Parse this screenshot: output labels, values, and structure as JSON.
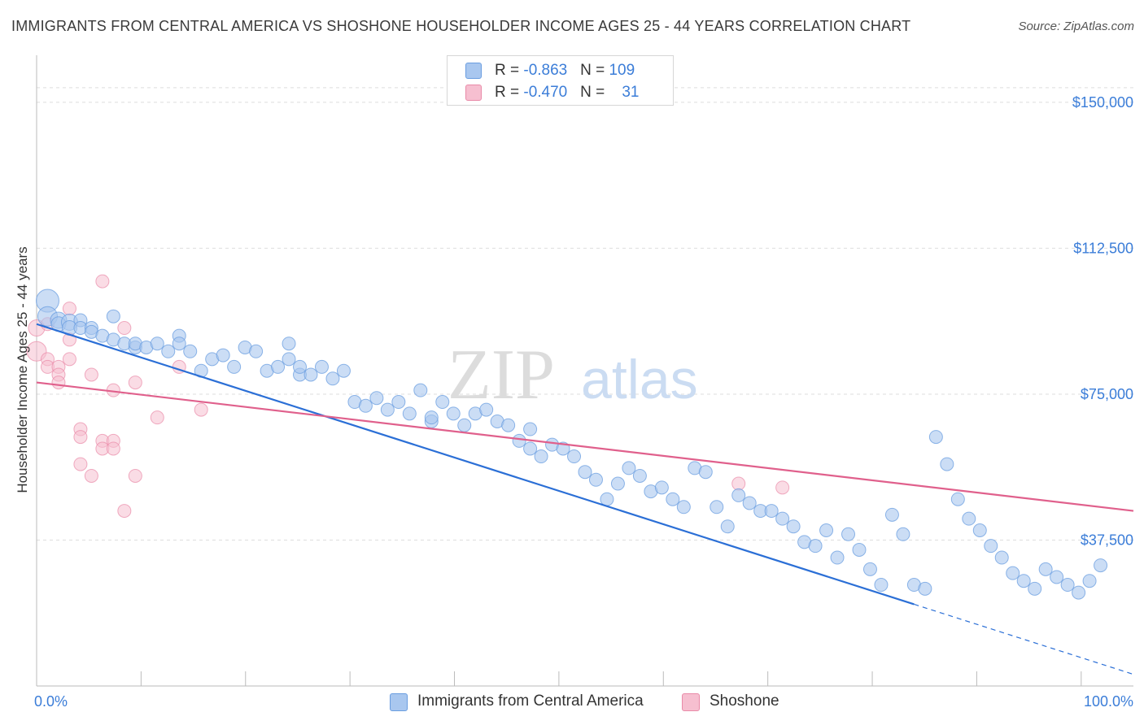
{
  "title": "IMMIGRANTS FROM CENTRAL AMERICA VS SHOSHONE HOUSEHOLDER INCOME AGES 25 - 44 YEARS CORRELATION CHART",
  "source": "Source: ZipAtlas.com",
  "watermark": {
    "part1": "ZIP",
    "part2": "atlas"
  },
  "colors": {
    "blue_fill": "#a9c7ef",
    "blue_stroke": "#6a9de0",
    "blue_line": "#2b6fd6",
    "pink_fill": "#f6bfd0",
    "pink_stroke": "#e98aa8",
    "pink_line": "#e0608c",
    "axis_text": "#3b7dd8",
    "grid": "#dedede"
  },
  "legend": {
    "rows": [
      {
        "r_label": "R = ",
        "r_value": "-0.863",
        "n_label": "N = ",
        "n_value": "109"
      },
      {
        "r_label": "R = ",
        "r_value": "-0.470",
        "n_label": "N = ",
        "n_value": "31"
      }
    ]
  },
  "chart_data": {
    "type": "scatter",
    "title": "IMMIGRANTS FROM CENTRAL AMERICA VS SHOSHONE HOUSEHOLDER INCOME AGES 25 - 44 YEARS CORRELATION CHART",
    "xlabel": "",
    "ylabel": "Householder Income Ages 25 - 44 years",
    "xlim": [
      0,
      100
    ],
    "ylim": [
      0,
      160000
    ],
    "x_tick_labels": [
      "0.0%",
      "100.0%"
    ],
    "y_ticks": [
      37500,
      75000,
      112500,
      150000
    ],
    "y_tick_labels": [
      "$37,500",
      "$75,000",
      "$112,500",
      "$150,000"
    ],
    "grid": true,
    "legend_position": "top-center",
    "series": [
      {
        "name": "Immigrants from Central America",
        "r": -0.863,
        "n": 109,
        "trend": {
          "x": [
            0,
            80
          ],
          "y": [
            93000,
            21000
          ],
          "dashed_extension": {
            "x": [
              80,
              100
            ],
            "y": [
              21000,
              3000
            ]
          }
        },
        "points": [
          [
            1,
            99000,
            14
          ],
          [
            1,
            95000,
            12
          ],
          [
            2,
            94000,
            10
          ],
          [
            2,
            93000,
            9
          ],
          [
            3,
            93500,
            10
          ],
          [
            3,
            92000,
            9
          ],
          [
            4,
            94000,
            8
          ],
          [
            4,
            92000,
            8
          ],
          [
            5,
            92000,
            8
          ],
          [
            5,
            91000,
            8
          ],
          [
            6,
            90000,
            8
          ],
          [
            7,
            95000,
            8
          ],
          [
            7,
            89000,
            8
          ],
          [
            8,
            88000,
            8
          ],
          [
            9,
            87000,
            8
          ],
          [
            9,
            88000,
            8
          ],
          [
            10,
            87000,
            8
          ],
          [
            11,
            88000,
            8
          ],
          [
            12,
            86000,
            8
          ],
          [
            13,
            90000,
            8
          ],
          [
            13,
            88000,
            8
          ],
          [
            14,
            86000,
            8
          ],
          [
            15,
            81000,
            8
          ],
          [
            16,
            84000,
            8
          ],
          [
            17,
            85000,
            8
          ],
          [
            18,
            82000,
            8
          ],
          [
            19,
            87000,
            8
          ],
          [
            20,
            86000,
            8
          ],
          [
            21,
            81000,
            8
          ],
          [
            22,
            82000,
            8
          ],
          [
            23,
            88000,
            8
          ],
          [
            23,
            84000,
            8
          ],
          [
            24,
            80000,
            8
          ],
          [
            24,
            82000,
            8
          ],
          [
            25,
            80000,
            8
          ],
          [
            26,
            82000,
            8
          ],
          [
            27,
            79000,
            8
          ],
          [
            28,
            81000,
            8
          ],
          [
            29,
            73000,
            8
          ],
          [
            30,
            72000,
            8
          ],
          [
            31,
            74000,
            8
          ],
          [
            32,
            71000,
            8
          ],
          [
            33,
            73000,
            8
          ],
          [
            34,
            70000,
            8
          ],
          [
            35,
            76000,
            8
          ],
          [
            36,
            68000,
            8
          ],
          [
            36,
            69000,
            8
          ],
          [
            37,
            73000,
            8
          ],
          [
            38,
            70000,
            8
          ],
          [
            39,
            67000,
            8
          ],
          [
            40,
            70000,
            8
          ],
          [
            41,
            71000,
            8
          ],
          [
            42,
            68000,
            8
          ],
          [
            43,
            67000,
            8
          ],
          [
            44,
            63000,
            8
          ],
          [
            45,
            61000,
            8
          ],
          [
            45,
            66000,
            8
          ],
          [
            46,
            59000,
            8
          ],
          [
            47,
            62000,
            8
          ],
          [
            48,
            61000,
            8
          ],
          [
            49,
            59000,
            8
          ],
          [
            50,
            55000,
            8
          ],
          [
            51,
            53000,
            8
          ],
          [
            52,
            48000,
            8
          ],
          [
            53,
            52000,
            8
          ],
          [
            54,
            56000,
            8
          ],
          [
            55,
            54000,
            8
          ],
          [
            56,
            50000,
            8
          ],
          [
            57,
            51000,
            8
          ],
          [
            58,
            48000,
            8
          ],
          [
            59,
            46000,
            8
          ],
          [
            60,
            56000,
            8
          ],
          [
            61,
            55000,
            8
          ],
          [
            62,
            46000,
            8
          ],
          [
            63,
            41000,
            8
          ],
          [
            64,
            49000,
            8
          ],
          [
            65,
            47000,
            8
          ],
          [
            66,
            45000,
            8
          ],
          [
            67,
            45000,
            8
          ],
          [
            68,
            43000,
            8
          ],
          [
            69,
            41000,
            8
          ],
          [
            70,
            37000,
            8
          ],
          [
            71,
            36000,
            8
          ],
          [
            72,
            40000,
            8
          ],
          [
            73,
            33000,
            8
          ],
          [
            74,
            39000,
            8
          ],
          [
            75,
            35000,
            8
          ],
          [
            76,
            30000,
            8
          ],
          [
            77,
            26000,
            8
          ],
          [
            78,
            44000,
            8
          ],
          [
            79,
            39000,
            8
          ],
          [
            80,
            26000,
            8
          ],
          [
            81,
            25000,
            8
          ],
          [
            82,
            64000,
            8
          ],
          [
            83,
            57000,
            8
          ],
          [
            84,
            48000,
            8
          ],
          [
            85,
            43000,
            8
          ],
          [
            86,
            40000,
            8
          ],
          [
            87,
            36000,
            8
          ],
          [
            88,
            33000,
            8
          ],
          [
            89,
            29000,
            8
          ],
          [
            90,
            27000,
            8
          ],
          [
            91,
            25000,
            8
          ],
          [
            92,
            30000,
            8
          ],
          [
            93,
            28000,
            8
          ],
          [
            94,
            26000,
            8
          ],
          [
            95,
            24000,
            8
          ],
          [
            96,
            27000,
            8
          ],
          [
            97,
            31000,
            8
          ]
        ]
      },
      {
        "name": "Shoshone",
        "r": -0.47,
        "n": 31,
        "trend": {
          "x": [
            0,
            100
          ],
          "y": [
            78000,
            45000
          ]
        },
        "points": [
          [
            0,
            86000,
            12
          ],
          [
            0,
            92000,
            10
          ],
          [
            1,
            84000,
            8
          ],
          [
            1,
            82000,
            8
          ],
          [
            1,
            93000,
            8
          ],
          [
            2,
            82000,
            8
          ],
          [
            2,
            80000,
            8
          ],
          [
            2,
            78000,
            8
          ],
          [
            3,
            97000,
            8
          ],
          [
            3,
            89000,
            8
          ],
          [
            3,
            84000,
            8
          ],
          [
            4,
            66000,
            8
          ],
          [
            4,
            64000,
            8
          ],
          [
            4,
            57000,
            8
          ],
          [
            5,
            80000,
            8
          ],
          [
            5,
            54000,
            8
          ],
          [
            6,
            104000,
            8
          ],
          [
            6,
            63000,
            8
          ],
          [
            6,
            61000,
            8
          ],
          [
            7,
            76000,
            8
          ],
          [
            7,
            63000,
            8
          ],
          [
            7,
            61000,
            8
          ],
          [
            8,
            92000,
            8
          ],
          [
            8,
            45000,
            8
          ],
          [
            9,
            78000,
            8
          ],
          [
            9,
            54000,
            8
          ],
          [
            11,
            69000,
            8
          ],
          [
            13,
            82000,
            8
          ],
          [
            15,
            71000,
            8
          ],
          [
            64,
            52000,
            8
          ],
          [
            68,
            51000,
            8
          ]
        ]
      }
    ]
  },
  "bottom_legend": [
    {
      "label": "Immigrants from Central America"
    },
    {
      "label": "Shoshone"
    }
  ]
}
